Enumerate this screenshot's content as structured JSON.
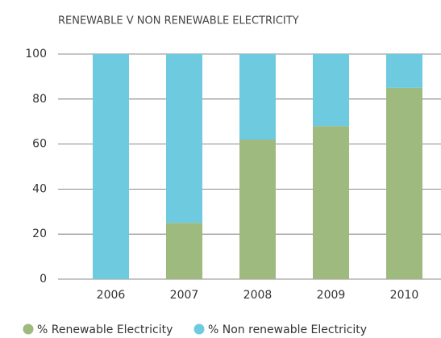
{
  "chart_data": {
    "type": "stacked_bar",
    "title": "RENEWABLE V NON RENEWABLE ELECTRICITY",
    "categories": [
      "2006",
      "2007",
      "2008",
      "2009",
      "2010"
    ],
    "series": [
      {
        "name": "% Renewable Electricity",
        "color": "#9fba7f",
        "values": [
          0,
          25,
          62,
          68,
          85
        ]
      },
      {
        "name": "% Non renewable Electricity",
        "color": "#6ecadf",
        "values": [
          100,
          75,
          38,
          32,
          15
        ]
      }
    ],
    "ylim": [
      0,
      100
    ],
    "yticks": [
      0,
      20,
      40,
      60,
      80,
      100
    ],
    "grid": true,
    "legend": "bottom"
  }
}
